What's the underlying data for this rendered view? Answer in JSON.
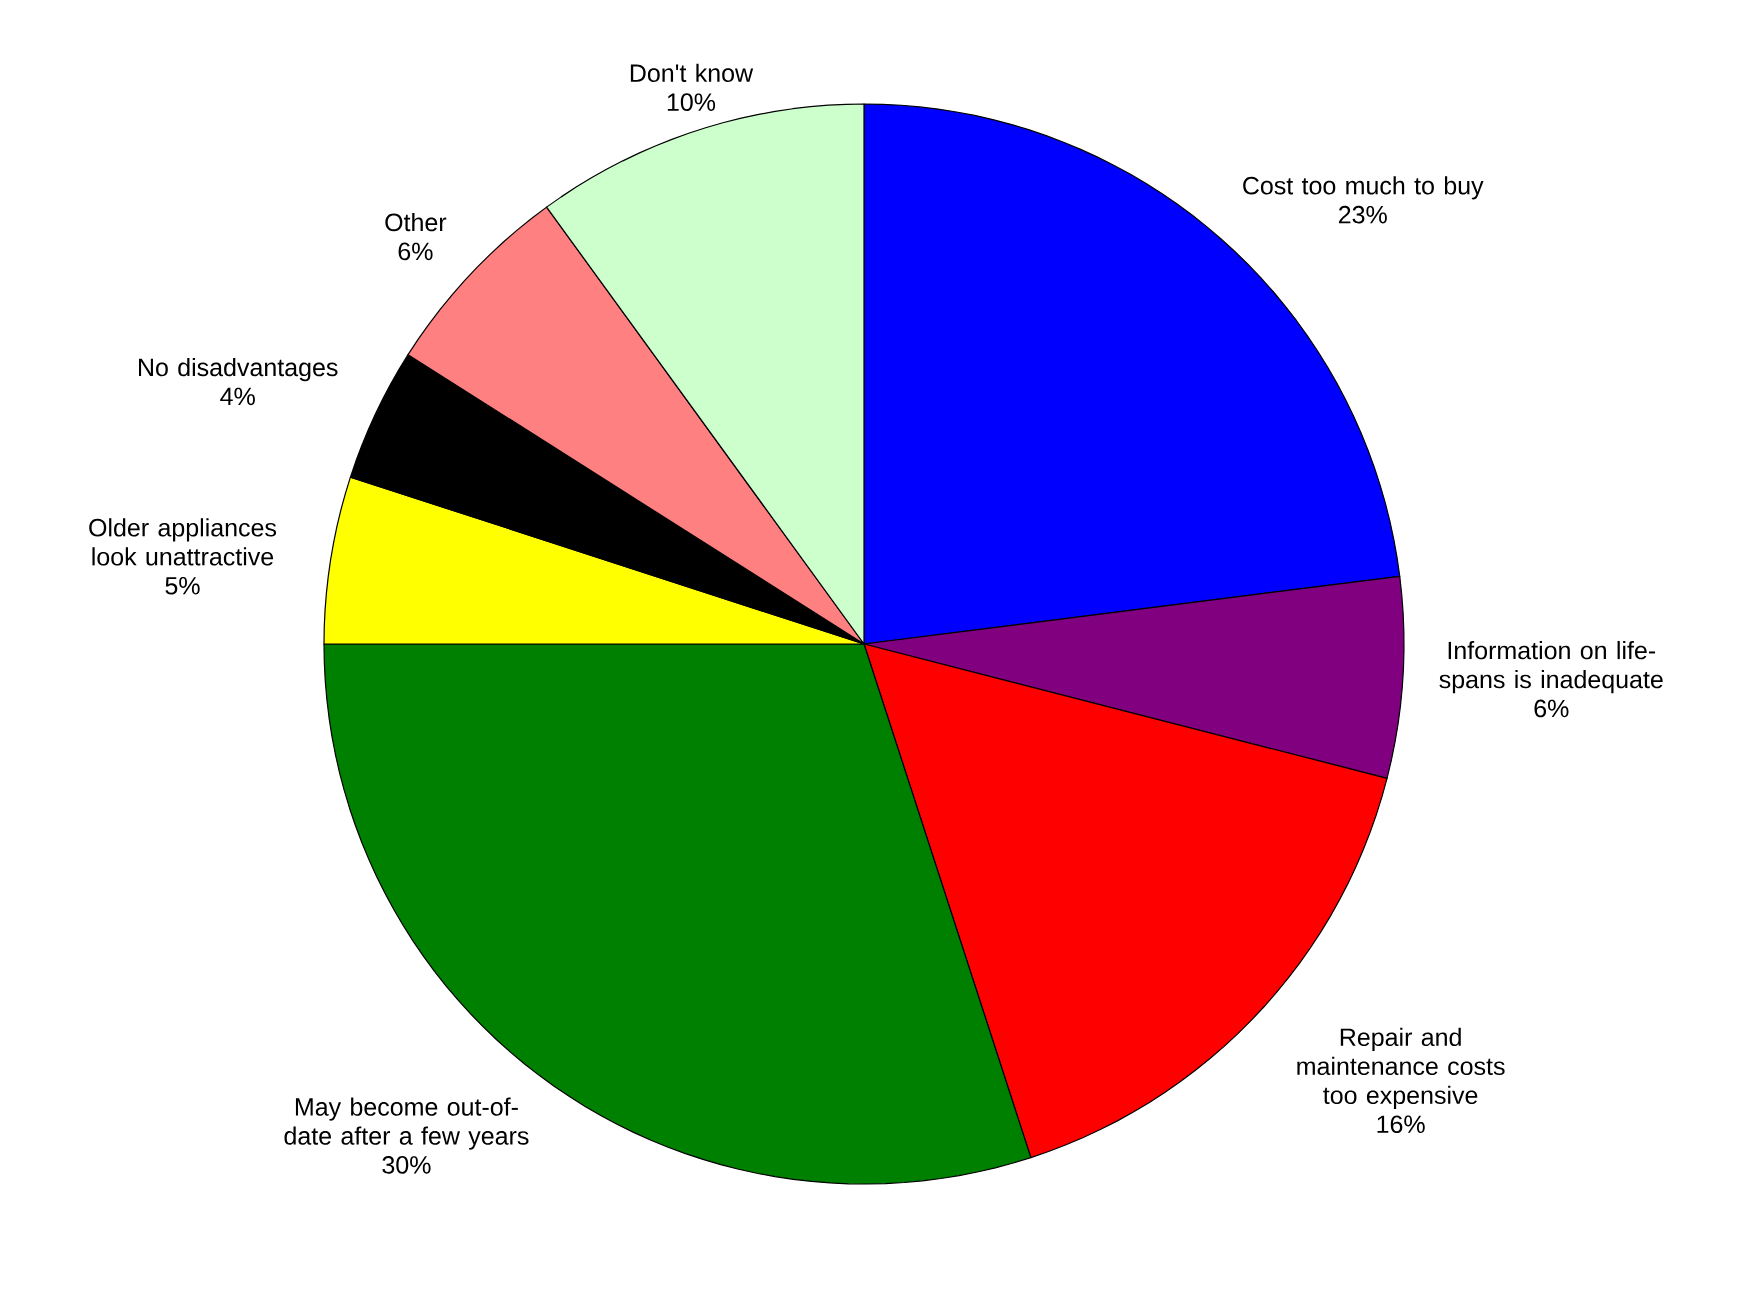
{
  "chart_data": {
    "type": "pie",
    "categories": [
      "Cost too much to buy",
      "Information on life-spans is inadequate",
      "Repair and maintenance costs too expensive",
      "May become out-of-date after a few years",
      "Older appliances look unattractive",
      "No disadvantages",
      "Other",
      "Don't know"
    ],
    "values": [
      23,
      6,
      16,
      30,
      5,
      4,
      6,
      10
    ],
    "value_labels": [
      "23%",
      "6%",
      "16%",
      "30%",
      "5%",
      "4%",
      "6%",
      "10%"
    ],
    "colors": [
      "#0000ff",
      "#800080",
      "#ff0000",
      "#008000",
      "#ffff00",
      "#000000",
      "#ff8080",
      "#ccffcc"
    ]
  }
}
